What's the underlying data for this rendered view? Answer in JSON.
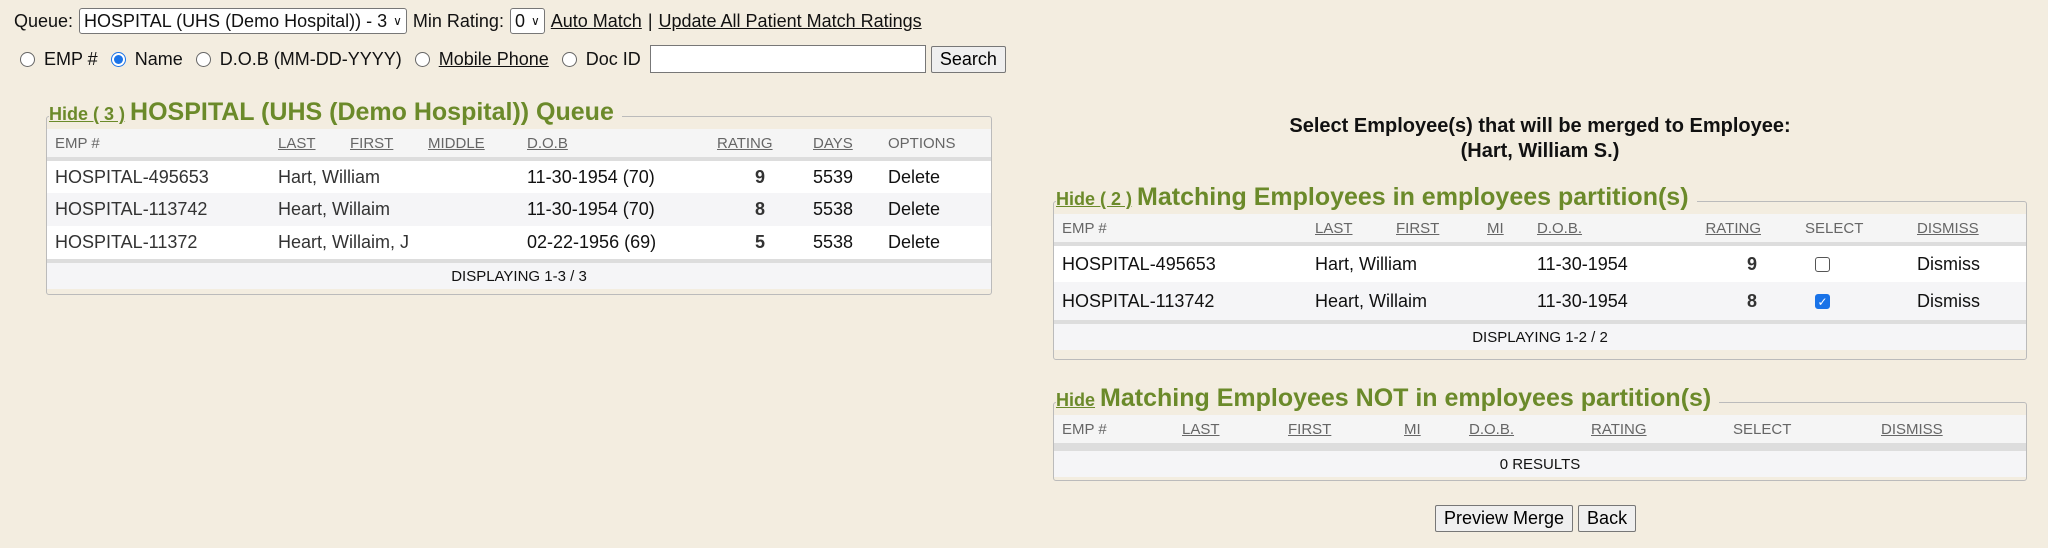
{
  "toolbar": {
    "queue_label": "Queue:",
    "queue_value": "HOSPITAL (UHS (Demo Hospital)) - 3",
    "min_rating_label": "Min Rating:",
    "min_rating_value": "0",
    "auto_match": "Auto Match",
    "separator": "|",
    "update_all": "Update All Patient Match Ratings"
  },
  "search": {
    "options": [
      "EMP #",
      "Name",
      "D.O.B (MM-DD-YYYY)",
      "Mobile Phone",
      "Doc ID"
    ],
    "selected": "Name",
    "value": "",
    "button": "Search"
  },
  "queue_panel": {
    "hide": "Hide ( 3 )",
    "title": "HOSPITAL (UHS (Demo Hospital)) Queue",
    "headers": [
      "EMP #",
      "LAST",
      "FIRST",
      "MIDDLE",
      "D.O.B",
      "RATING",
      "DAYS",
      "OPTIONS"
    ],
    "rows": [
      {
        "emp": "HOSPITAL-495653",
        "name": "Hart, William",
        "dob": "11-30-1954 (70)",
        "rating": "9",
        "days": "5539",
        "option": "Delete"
      },
      {
        "emp": "HOSPITAL-113742",
        "name": "Heart, Willaim",
        "dob": "11-30-1954 (70)",
        "rating": "8",
        "days": "5538",
        "option": "Delete"
      },
      {
        "emp": "HOSPITAL-11372",
        "name": "Heart, Willaim, J",
        "dob": "02-22-1956 (69)",
        "rating": "5",
        "days": "5538",
        "option": "Delete"
      }
    ],
    "footer": "DISPLAYING 1-3 / 3"
  },
  "merge_heading": {
    "line1": "Select Employee(s) that will be merged to Employee:",
    "line2": "(Hart, William S.)"
  },
  "matching_panel": {
    "hide": "Hide ( 2 )",
    "title": "Matching Employees in employees partition(s)",
    "headers": [
      "EMP #",
      "LAST",
      "FIRST",
      "MI",
      "D.O.B.",
      "RATING",
      "SELECT",
      "DISMISS"
    ],
    "rows": [
      {
        "emp": "HOSPITAL-495653",
        "name": "Hart, William",
        "dob": "11-30-1954",
        "rating": "9",
        "selected": false,
        "dismiss": "Dismiss"
      },
      {
        "emp": "HOSPITAL-113742",
        "name": "Heart, Willaim",
        "dob": "11-30-1954",
        "rating": "8",
        "selected": true,
        "dismiss": "Dismiss"
      }
    ],
    "footer": "DISPLAYING 1-2 / 2"
  },
  "not_matching_panel": {
    "hide": "Hide",
    "title": "Matching Employees NOT in employees partition(s)",
    "headers": [
      "EMP #",
      "LAST",
      "FIRST",
      "MI",
      "D.O.B.",
      "RATING",
      "SELECT",
      "DISMISS"
    ],
    "footer": "0 RESULTS"
  },
  "actions": {
    "preview": "Preview Merge",
    "back": "Back"
  },
  "colors": {
    "background": "#f3ede0",
    "legend_green": "#6b8a2a",
    "checkbox_blue": "#1a73e8"
  }
}
